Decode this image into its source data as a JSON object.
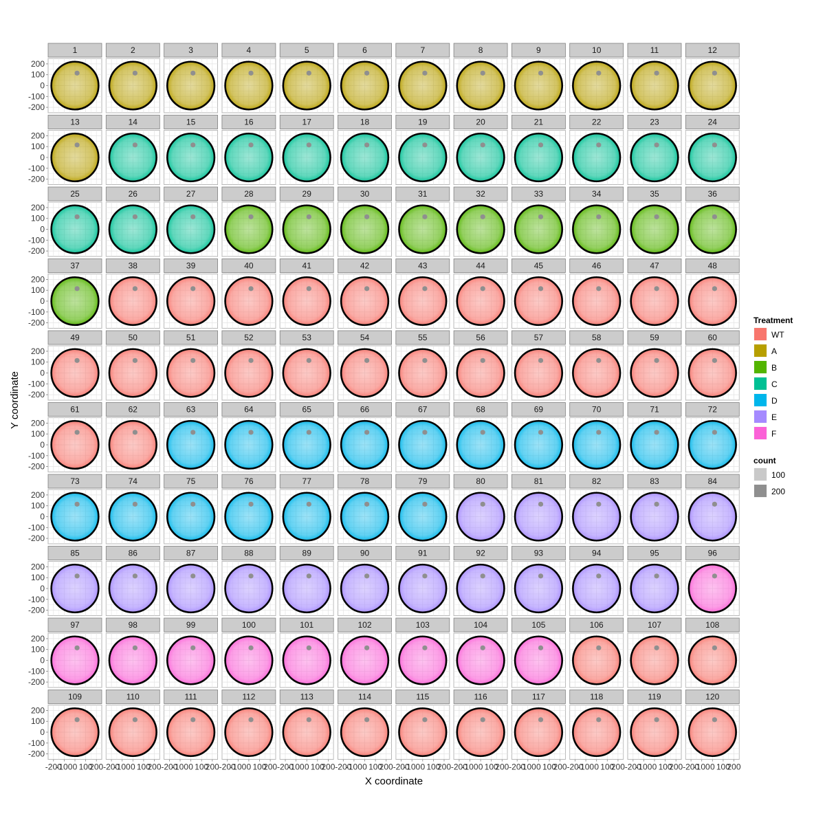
{
  "chart_data": {
    "type": "scatter",
    "subtype": "faceted-trajectory-density",
    "xlabel": "X coordinate",
    "ylabel": "Y coordinate",
    "xlim": [
      -250,
      250
    ],
    "ylim": [
      -250,
      250
    ],
    "x_ticks": [
      "-200",
      "-100",
      "0",
      "100",
      "200"
    ],
    "y_ticks": [
      "200",
      "100",
      "0",
      "-100",
      "-200"
    ],
    "grid": true,
    "arena_radius": 220,
    "target_marker": {
      "x": 20,
      "y": 115
    },
    "facet_columns": 12,
    "legend_position": "right",
    "legends": [
      {
        "title": "Treatment",
        "items": [
          {
            "label": "WT",
            "color": "#F8766D"
          },
          {
            "label": "A",
            "color": "#B79F00"
          },
          {
            "label": "B",
            "color": "#53B400"
          },
          {
            "label": "C",
            "color": "#00C094"
          },
          {
            "label": "D",
            "color": "#00B6EB"
          },
          {
            "label": "E",
            "color": "#A58AFF"
          },
          {
            "label": "F",
            "color": "#FB61D7"
          }
        ]
      },
      {
        "title": "count",
        "items": [
          {
            "label": "100",
            "color": "#c9c9c9"
          },
          {
            "label": "200",
            "color": "#8f8f8f"
          }
        ]
      }
    ],
    "facets": [
      {
        "label": "1",
        "treatment": "A"
      },
      {
        "label": "2",
        "treatment": "A"
      },
      {
        "label": "3",
        "treatment": "A"
      },
      {
        "label": "4",
        "treatment": "A"
      },
      {
        "label": "5",
        "treatment": "A"
      },
      {
        "label": "6",
        "treatment": "A"
      },
      {
        "label": "7",
        "treatment": "A"
      },
      {
        "label": "8",
        "treatment": "A"
      },
      {
        "label": "9",
        "treatment": "A"
      },
      {
        "label": "10",
        "treatment": "A"
      },
      {
        "label": "11",
        "treatment": "A"
      },
      {
        "label": "12",
        "treatment": "A"
      },
      {
        "label": "13",
        "treatment": "A"
      },
      {
        "label": "14",
        "treatment": "C"
      },
      {
        "label": "15",
        "treatment": "C"
      },
      {
        "label": "16",
        "treatment": "C"
      },
      {
        "label": "17",
        "treatment": "C"
      },
      {
        "label": "18",
        "treatment": "C"
      },
      {
        "label": "19",
        "treatment": "C"
      },
      {
        "label": "20",
        "treatment": "C"
      },
      {
        "label": "21",
        "treatment": "C"
      },
      {
        "label": "22",
        "treatment": "C"
      },
      {
        "label": "23",
        "treatment": "C"
      },
      {
        "label": "24",
        "treatment": "C"
      },
      {
        "label": "25",
        "treatment": "C"
      },
      {
        "label": "26",
        "treatment": "C"
      },
      {
        "label": "27",
        "treatment": "C"
      },
      {
        "label": "28",
        "treatment": "B"
      },
      {
        "label": "29",
        "treatment": "B"
      },
      {
        "label": "30",
        "treatment": "B"
      },
      {
        "label": "31",
        "treatment": "B"
      },
      {
        "label": "32",
        "treatment": "B"
      },
      {
        "label": "33",
        "treatment": "B"
      },
      {
        "label": "34",
        "treatment": "B"
      },
      {
        "label": "35",
        "treatment": "B"
      },
      {
        "label": "36",
        "treatment": "B"
      },
      {
        "label": "37",
        "treatment": "B"
      },
      {
        "label": "38",
        "treatment": "WT"
      },
      {
        "label": "39",
        "treatment": "WT"
      },
      {
        "label": "40",
        "treatment": "WT"
      },
      {
        "label": "41",
        "treatment": "WT"
      },
      {
        "label": "42",
        "treatment": "WT"
      },
      {
        "label": "43",
        "treatment": "WT"
      },
      {
        "label": "44",
        "treatment": "WT"
      },
      {
        "label": "45",
        "treatment": "WT"
      },
      {
        "label": "46",
        "treatment": "WT"
      },
      {
        "label": "47",
        "treatment": "WT"
      },
      {
        "label": "48",
        "treatment": "WT"
      },
      {
        "label": "49",
        "treatment": "WT"
      },
      {
        "label": "50",
        "treatment": "WT"
      },
      {
        "label": "51",
        "treatment": "WT"
      },
      {
        "label": "52",
        "treatment": "WT"
      },
      {
        "label": "53",
        "treatment": "WT"
      },
      {
        "label": "54",
        "treatment": "WT"
      },
      {
        "label": "55",
        "treatment": "WT"
      },
      {
        "label": "56",
        "treatment": "WT"
      },
      {
        "label": "57",
        "treatment": "WT"
      },
      {
        "label": "58",
        "treatment": "WT"
      },
      {
        "label": "59",
        "treatment": "WT"
      },
      {
        "label": "60",
        "treatment": "WT"
      },
      {
        "label": "61",
        "treatment": "WT"
      },
      {
        "label": "62",
        "treatment": "WT"
      },
      {
        "label": "63",
        "treatment": "D"
      },
      {
        "label": "64",
        "treatment": "D"
      },
      {
        "label": "65",
        "treatment": "D"
      },
      {
        "label": "66",
        "treatment": "D"
      },
      {
        "label": "67",
        "treatment": "D"
      },
      {
        "label": "68",
        "treatment": "D"
      },
      {
        "label": "69",
        "treatment": "D"
      },
      {
        "label": "70",
        "treatment": "D"
      },
      {
        "label": "71",
        "treatment": "D"
      },
      {
        "label": "72",
        "treatment": "D"
      },
      {
        "label": "73",
        "treatment": "D"
      },
      {
        "label": "74",
        "treatment": "D"
      },
      {
        "label": "75",
        "treatment": "D"
      },
      {
        "label": "76",
        "treatment": "D"
      },
      {
        "label": "77",
        "treatment": "D"
      },
      {
        "label": "78",
        "treatment": "D"
      },
      {
        "label": "79",
        "treatment": "D"
      },
      {
        "label": "80",
        "treatment": "E"
      },
      {
        "label": "81",
        "treatment": "E"
      },
      {
        "label": "82",
        "treatment": "E"
      },
      {
        "label": "83",
        "treatment": "E"
      },
      {
        "label": "84",
        "treatment": "E"
      },
      {
        "label": "85",
        "treatment": "E"
      },
      {
        "label": "86",
        "treatment": "E"
      },
      {
        "label": "87",
        "treatment": "E"
      },
      {
        "label": "88",
        "treatment": "E"
      },
      {
        "label": "89",
        "treatment": "E"
      },
      {
        "label": "90",
        "treatment": "E"
      },
      {
        "label": "91",
        "treatment": "E"
      },
      {
        "label": "92",
        "treatment": "E"
      },
      {
        "label": "93",
        "treatment": "E"
      },
      {
        "label": "94",
        "treatment": "E"
      },
      {
        "label": "95",
        "treatment": "E"
      },
      {
        "label": "96",
        "treatment": "F"
      },
      {
        "label": "97",
        "treatment": "F"
      },
      {
        "label": "98",
        "treatment": "F"
      },
      {
        "label": "99",
        "treatment": "F"
      },
      {
        "label": "100",
        "treatment": "F"
      },
      {
        "label": "101",
        "treatment": "F"
      },
      {
        "label": "102",
        "treatment": "F"
      },
      {
        "label": "103",
        "treatment": "F"
      },
      {
        "label": "104",
        "treatment": "F"
      },
      {
        "label": "105",
        "treatment": "F"
      },
      {
        "label": "106",
        "treatment": "WT"
      },
      {
        "label": "107",
        "treatment": "WT"
      },
      {
        "label": "108",
        "treatment": "WT"
      },
      {
        "label": "109",
        "treatment": "WT"
      },
      {
        "label": "110",
        "treatment": "WT"
      },
      {
        "label": "111",
        "treatment": "WT"
      },
      {
        "label": "112",
        "treatment": "WT"
      },
      {
        "label": "113",
        "treatment": "WT"
      },
      {
        "label": "114",
        "treatment": "WT"
      },
      {
        "label": "115",
        "treatment": "WT"
      },
      {
        "label": "116",
        "treatment": "WT"
      },
      {
        "label": "117",
        "treatment": "WT"
      },
      {
        "label": "118",
        "treatment": "WT"
      },
      {
        "label": "119",
        "treatment": "WT"
      },
      {
        "label": "120",
        "treatment": "WT"
      }
    ]
  }
}
